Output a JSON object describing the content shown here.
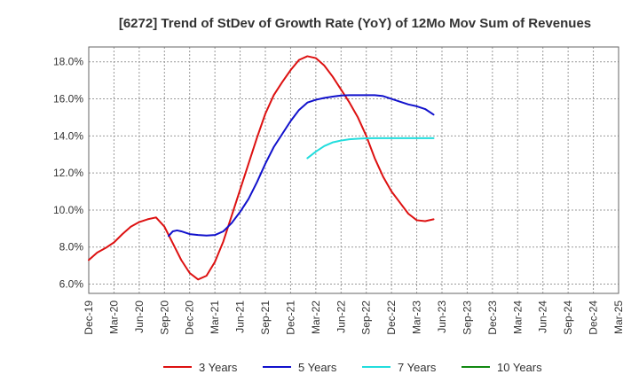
{
  "chart_data": {
    "type": "line",
    "title": "[6272]  Trend of StDev of Growth Rate (YoY) of 12Mo Mov Sum of Revenues",
    "xlabel": "",
    "ylabel": "",
    "x_ticks": [
      "Dec-19",
      "Mar-20",
      "Jun-20",
      "Sep-20",
      "Dec-20",
      "Mar-21",
      "Jun-21",
      "Sep-21",
      "Dec-21",
      "Mar-22",
      "Jun-22",
      "Sep-22",
      "Dec-22",
      "Mar-23",
      "Jun-23",
      "Sep-23",
      "Dec-23",
      "Mar-24",
      "Jun-24",
      "Sep-24",
      "Dec-24",
      "Mar-25"
    ],
    "y_ticks": [
      "6.0%",
      "8.0%",
      "10.0%",
      "12.0%",
      "14.0%",
      "16.0%",
      "18.0%"
    ],
    "y_tick_values": [
      6,
      8,
      10,
      12,
      14,
      16,
      18
    ],
    "ylim": [
      5.5,
      18.8
    ],
    "grid": true,
    "legend_position": "bottom",
    "series": [
      {
        "name": "3 Years",
        "color": "#dd1111",
        "points": [
          [
            0,
            7.3
          ],
          [
            1,
            7.7
          ],
          [
            2,
            7.95
          ],
          [
            3,
            8.25
          ],
          [
            4,
            8.7
          ],
          [
            5,
            9.1
          ],
          [
            6,
            9.35
          ],
          [
            7,
            9.5
          ],
          [
            8,
            9.6
          ],
          [
            9,
            9.1
          ],
          [
            10,
            8.2
          ],
          [
            11,
            7.3
          ],
          [
            12,
            6.6
          ],
          [
            13,
            6.25
          ],
          [
            14,
            6.45
          ],
          [
            15,
            7.2
          ],
          [
            16,
            8.3
          ],
          [
            17,
            9.7
          ],
          [
            18,
            11.1
          ],
          [
            19,
            12.5
          ],
          [
            20,
            13.9
          ],
          [
            21,
            15.2
          ],
          [
            22,
            16.2
          ],
          [
            23,
            16.9
          ],
          [
            24,
            17.55
          ],
          [
            25,
            18.1
          ],
          [
            26,
            18.3
          ],
          [
            27,
            18.2
          ],
          [
            28,
            17.8
          ],
          [
            29,
            17.2
          ],
          [
            30,
            16.5
          ],
          [
            31,
            15.8
          ],
          [
            32,
            15.0
          ],
          [
            33,
            14.0
          ],
          [
            34,
            12.8
          ],
          [
            35,
            11.8
          ],
          [
            36,
            11.0
          ],
          [
            37,
            10.4
          ],
          [
            38,
            9.8
          ],
          [
            39,
            9.45
          ],
          [
            40,
            9.4
          ],
          [
            41,
            9.5
          ]
        ]
      },
      {
        "name": "5 Years",
        "color": "#1111cc",
        "points": [
          [
            9.5,
            8.6
          ],
          [
            10,
            8.85
          ],
          [
            10.5,
            8.9
          ],
          [
            11,
            8.85
          ],
          [
            12,
            8.7
          ],
          [
            13,
            8.65
          ],
          [
            14,
            8.62
          ],
          [
            15,
            8.65
          ],
          [
            16,
            8.85
          ],
          [
            17,
            9.3
          ],
          [
            18,
            9.9
          ],
          [
            19,
            10.6
          ],
          [
            20,
            11.5
          ],
          [
            21,
            12.5
          ],
          [
            22,
            13.4
          ],
          [
            23,
            14.1
          ],
          [
            24,
            14.8
          ],
          [
            25,
            15.4
          ],
          [
            26,
            15.8
          ],
          [
            27,
            15.95
          ],
          [
            28,
            16.05
          ],
          [
            29,
            16.12
          ],
          [
            30,
            16.18
          ],
          [
            31,
            16.2
          ],
          [
            32,
            16.2
          ],
          [
            33,
            16.2
          ],
          [
            34,
            16.2
          ],
          [
            35,
            16.15
          ],
          [
            36,
            16.0
          ],
          [
            37,
            15.85
          ],
          [
            38,
            15.7
          ],
          [
            39,
            15.6
          ],
          [
            40,
            15.45
          ],
          [
            41,
            15.15
          ]
        ]
      },
      {
        "name": "7 Years",
        "color": "#22dddd",
        "points": [
          [
            26,
            12.8
          ],
          [
            27,
            13.15
          ],
          [
            28,
            13.45
          ],
          [
            29,
            13.65
          ],
          [
            30,
            13.75
          ],
          [
            31,
            13.82
          ],
          [
            32,
            13.85
          ],
          [
            33,
            13.87
          ],
          [
            34,
            13.88
          ],
          [
            35,
            13.88
          ],
          [
            36,
            13.88
          ],
          [
            37,
            13.88
          ],
          [
            38,
            13.88
          ],
          [
            39,
            13.88
          ],
          [
            40,
            13.88
          ],
          [
            41,
            13.88
          ]
        ]
      },
      {
        "name": "10 Years",
        "color": "#118811",
        "points": []
      }
    ]
  }
}
